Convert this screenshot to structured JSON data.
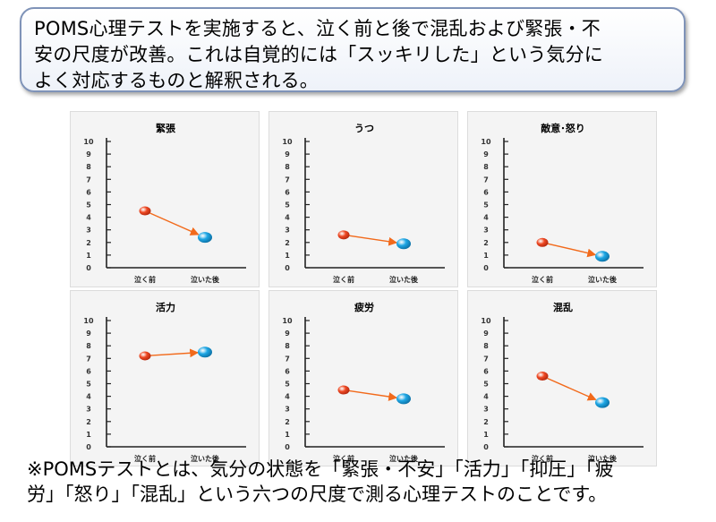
{
  "callout": {
    "line1": " POMS心理テストを実施すると、泣く前と後で混乱および緊張・不",
    "line2": "安の尺度が改善。これは自覚的には「スッキリした」という気分に",
    "line3": "よく対応するものと解釈される。"
  },
  "footnote": {
    "line1": "※POMSテストとは、気分の状態を「緊張・不安」「活力」「抑圧」「疲",
    "line2": "労」「怒り」「混乱」という六つの尺度で測る心理テストのことです。"
  },
  "colors": {
    "before": "#f04a24",
    "after": "#1fa8e6",
    "arrow": "#f26a1b"
  },
  "chart_data": [
    {
      "type": "line",
      "title": "緊張",
      "categories": [
        "泣く前",
        "泣いた後"
      ],
      "values": [
        4.5,
        2.4
      ],
      "ylim": [
        0,
        10
      ],
      "yticks": [
        "0",
        "1",
        "2",
        "3",
        "4",
        "5",
        "6",
        "7",
        "8",
        "9",
        "10"
      ]
    },
    {
      "type": "line",
      "title": "うつ",
      "categories": [
        "泣く前",
        "泣いた後"
      ],
      "values": [
        2.6,
        1.9
      ],
      "ylim": [
        0,
        10
      ],
      "yticks": [
        "0",
        "1",
        "2",
        "3",
        "4",
        "5",
        "6",
        "7",
        "8",
        "9",
        "10"
      ]
    },
    {
      "type": "line",
      "title": "敵意･怒り",
      "categories": [
        "泣く前",
        "泣いた後"
      ],
      "values": [
        2.0,
        0.9
      ],
      "ylim": [
        0,
        10
      ],
      "yticks": [
        "0",
        "1",
        "2",
        "3",
        "4",
        "5",
        "6",
        "7",
        "8",
        "9",
        "10"
      ]
    },
    {
      "type": "line",
      "title": "活力",
      "categories": [
        "泣く前",
        "泣いた後"
      ],
      "values": [
        7.2,
        7.5
      ],
      "ylim": [
        0,
        10
      ],
      "yticks": [
        "0",
        "1",
        "2",
        "3",
        "4",
        "5",
        "6",
        "7",
        "8",
        "9",
        "10"
      ]
    },
    {
      "type": "line",
      "title": "疲労",
      "categories": [
        "泣く前",
        "泣いた後"
      ],
      "values": [
        4.5,
        3.8
      ],
      "ylim": [
        0,
        10
      ],
      "yticks": [
        "0",
        "1",
        "2",
        "3",
        "4",
        "5",
        "6",
        "7",
        "8",
        "9",
        "10"
      ]
    },
    {
      "type": "line",
      "title": "混乱",
      "categories": [
        "泣く前",
        "泣いた後"
      ],
      "values": [
        5.6,
        3.5
      ],
      "ylim": [
        0,
        10
      ],
      "yticks": [
        "0",
        "1",
        "2",
        "3",
        "4",
        "5",
        "6",
        "7",
        "8",
        "9",
        "10"
      ]
    }
  ]
}
